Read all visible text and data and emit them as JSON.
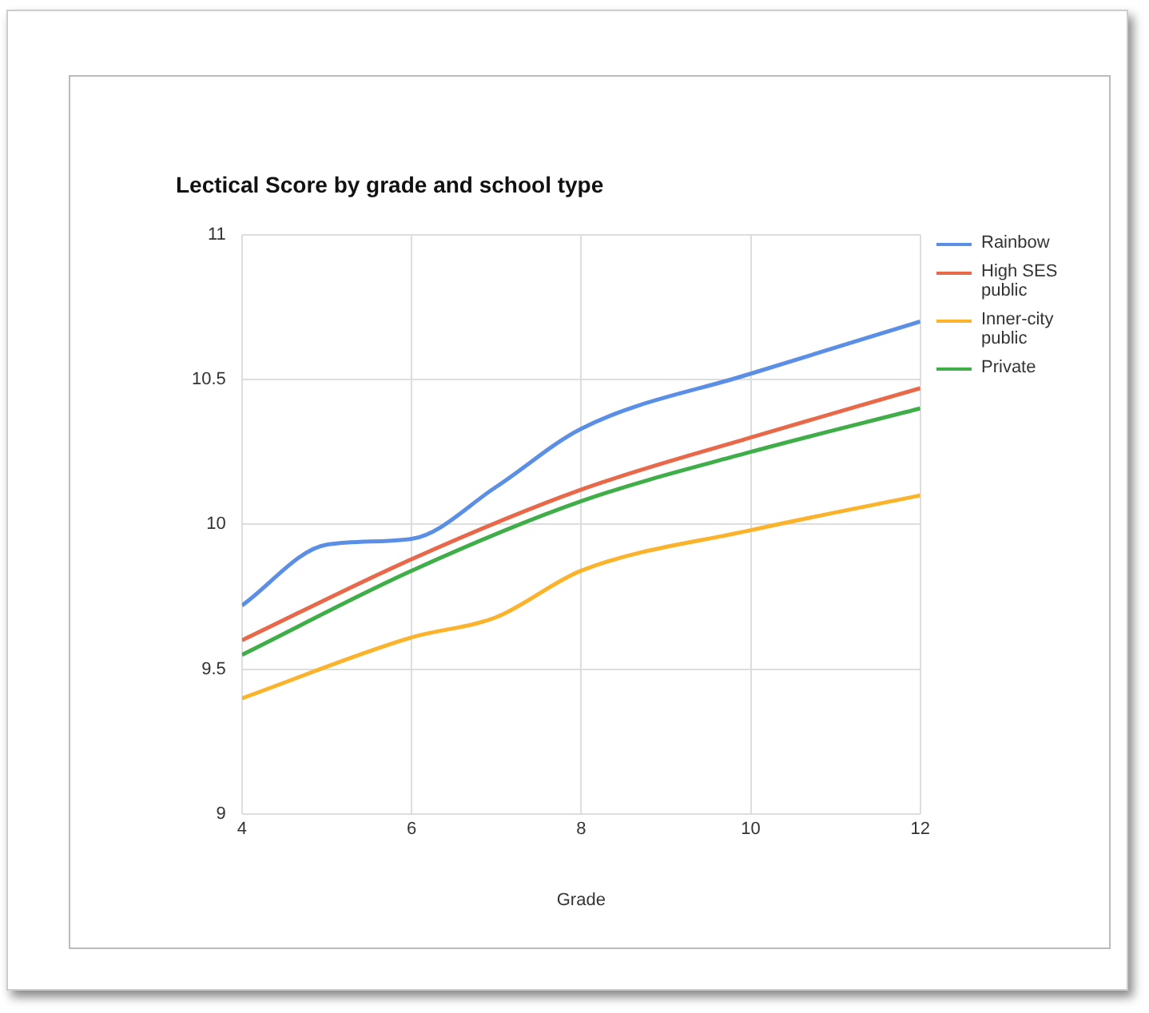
{
  "chart_data": {
    "type": "line",
    "title": "Lectical Score by grade and school type",
    "xlabel": "Grade",
    "xlim": [
      4,
      12
    ],
    "xticks": [
      4,
      6,
      8,
      10,
      12
    ],
    "ylim": [
      9,
      11
    ],
    "yticks": [
      9,
      9.5,
      10,
      10.5,
      11
    ],
    "grid": true,
    "legend": "right",
    "marker": "none",
    "line_style": "solid",
    "series": [
      {
        "name": "Rainbow",
        "color": "#5b8fe6",
        "x": [
          4,
          5,
          6,
          7,
          8,
          10,
          12
        ],
        "values": [
          9.72,
          9.93,
          9.95,
          10.13,
          10.33,
          10.52,
          10.7
        ]
      },
      {
        "name": "High SES public",
        "color": "#e8694a",
        "x": [
          4,
          6,
          8,
          10,
          12
        ],
        "values": [
          9.6,
          9.88,
          10.12,
          10.3,
          10.47
        ]
      },
      {
        "name": "Inner-city public",
        "color": "#fbb32c",
        "x": [
          4,
          6,
          7,
          8,
          10,
          12
        ],
        "values": [
          9.4,
          9.61,
          9.68,
          9.84,
          9.98,
          10.1
        ]
      },
      {
        "name": "Private",
        "color": "#3fae49",
        "x": [
          4,
          6,
          8,
          10,
          12
        ],
        "values": [
          9.55,
          9.84,
          10.08,
          10.25,
          10.4
        ]
      }
    ]
  }
}
